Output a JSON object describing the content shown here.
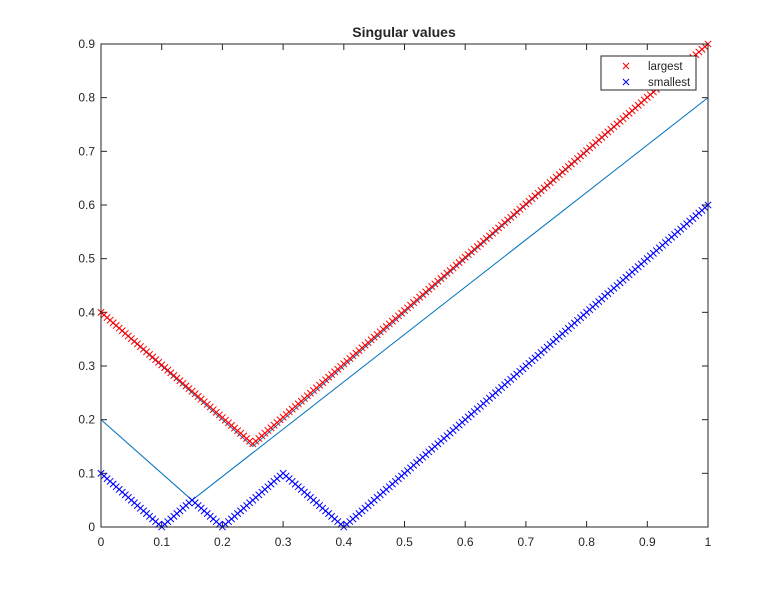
{
  "chart_data": {
    "type": "scatter",
    "title": "Singular values",
    "xlabel": "",
    "ylabel": "",
    "xlim": [
      0,
      1
    ],
    "ylim": [
      0,
      0.9
    ],
    "xticks": [
      "0",
      "0.1",
      "0.2",
      "0.3",
      "0.4",
      "0.5",
      "0.6",
      "0.7",
      "0.8",
      "0.9",
      "1"
    ],
    "yticks": [
      "0",
      "0.1",
      "0.2",
      "0.3",
      "0.4",
      "0.5",
      "0.6",
      "0.7",
      "0.8",
      "0.9"
    ],
    "grid": false,
    "legend_position": "top-right",
    "series": [
      {
        "name": "largest",
        "marker": "x",
        "color": "#ff0000",
        "x": [
          0,
          0.25,
          1
        ],
        "y": [
          0.4,
          0.155,
          0.9
        ]
      },
      {
        "name": "smallest",
        "marker": "x",
        "color": "#0000ff",
        "x": [
          0,
          0.1,
          0.15,
          0.2,
          0.3,
          0.4,
          1
        ],
        "y": [
          0.1,
          0,
          0.05,
          0,
          0.1,
          0,
          0.6
        ]
      },
      {
        "marker": "line",
        "color": "#0072bd",
        "x": [
          0,
          0.15,
          1
        ],
        "y": [
          0.2,
          0.05,
          0.8
        ]
      },
      {
        "marker": "line",
        "color": "#0072bd",
        "x": [
          0,
          0.25,
          1
        ],
        "y": [
          0.4,
          0.15,
          0.9
        ]
      }
    ]
  }
}
